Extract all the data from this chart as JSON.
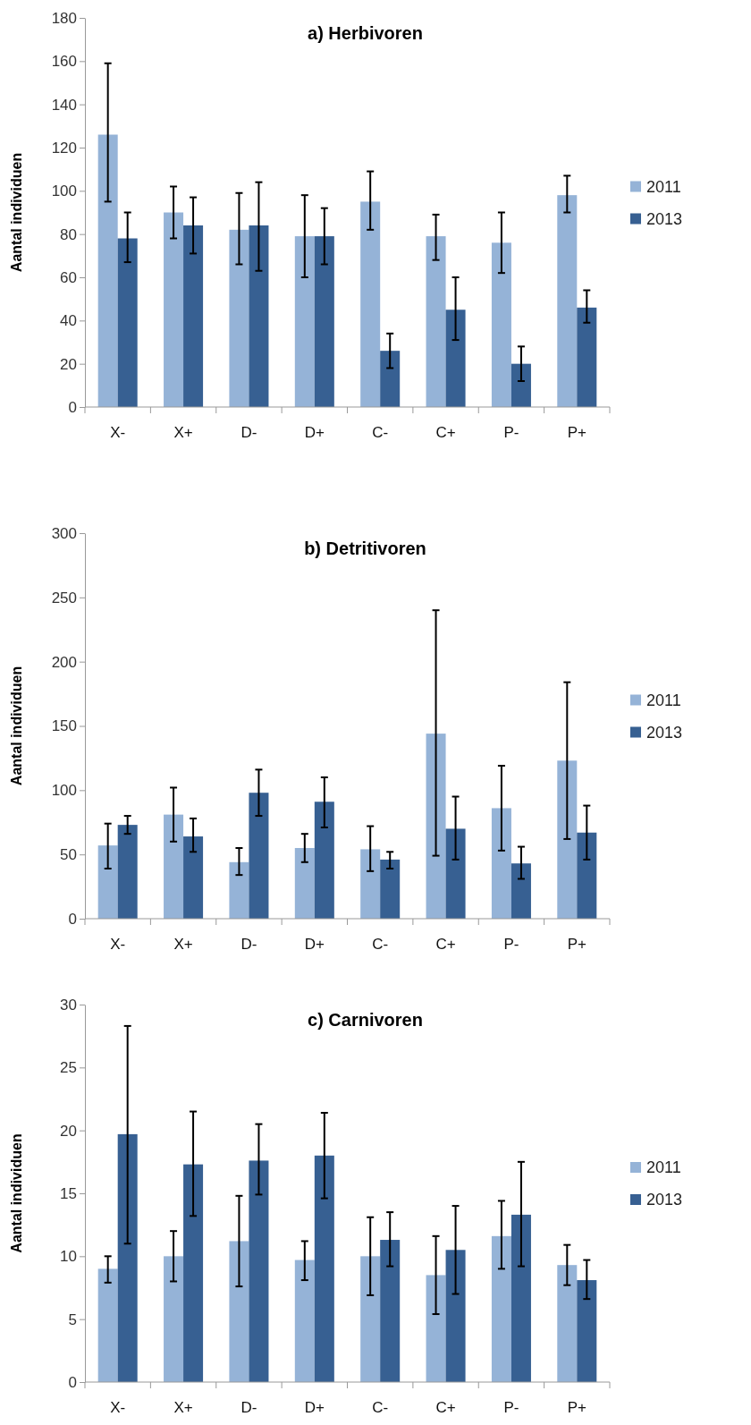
{
  "chart_data": [
    {
      "type": "bar",
      "title": "a) Herbivoren",
      "ylabel": "Aantal individuen",
      "categories": [
        "X-",
        "X+",
        "D-",
        "D+",
        "C-",
        "C+",
        "P-",
        "P+"
      ],
      "ylim": [
        0,
        180
      ],
      "yticks": [
        0,
        20,
        40,
        60,
        80,
        100,
        120,
        140,
        160,
        180
      ],
      "grid": false,
      "legend": "right",
      "series": [
        {
          "name": "2011",
          "color": "#95b3d7",
          "values": [
            126,
            90,
            82,
            79,
            95,
            79,
            76,
            98
          ],
          "errors": [
            [
              95,
              159
            ],
            [
              78,
              102
            ],
            [
              66,
              99
            ],
            [
              60,
              98
            ],
            [
              82,
              109
            ],
            [
              68,
              89
            ],
            [
              62,
              90
            ],
            [
              90,
              107
            ]
          ]
        },
        {
          "name": "2013",
          "color": "#376092",
          "values": [
            78,
            84,
            84,
            79,
            26,
            45,
            20,
            46
          ],
          "errors": [
            [
              67,
              90
            ],
            [
              71,
              97
            ],
            [
              63,
              104
            ],
            [
              66,
              92
            ],
            [
              18,
              34
            ],
            [
              31,
              60
            ],
            [
              12,
              28
            ],
            [
              39,
              54
            ]
          ]
        }
      ]
    },
    {
      "type": "bar",
      "title": "b) Detritivoren",
      "ylabel": "Aantal individuen",
      "categories": [
        "X-",
        "X+",
        "D-",
        "D+",
        "C-",
        "C+",
        "P-",
        "P+"
      ],
      "ylim": [
        0,
        300
      ],
      "yticks": [
        0,
        50,
        100,
        150,
        200,
        250,
        300
      ],
      "grid": false,
      "legend": "right",
      "series": [
        {
          "name": "2011",
          "color": "#95b3d7",
          "values": [
            57,
            81,
            44,
            55,
            54,
            144,
            86,
            123
          ],
          "errors": [
            [
              39,
              74
            ],
            [
              60,
              102
            ],
            [
              34,
              55
            ],
            [
              44,
              66
            ],
            [
              37,
              72
            ],
            [
              49,
              240
            ],
            [
              53,
              119
            ],
            [
              62,
              184
            ]
          ]
        },
        {
          "name": "2013",
          "color": "#376092",
          "values": [
            73,
            64,
            98,
            91,
            46,
            70,
            43,
            67
          ],
          "errors": [
            [
              66,
              80
            ],
            [
              52,
              78
            ],
            [
              80,
              116
            ],
            [
              71,
              110
            ],
            [
              39,
              52
            ],
            [
              46,
              95
            ],
            [
              31,
              56
            ],
            [
              46,
              88
            ]
          ]
        }
      ]
    },
    {
      "type": "bar",
      "title": "c) Carnivoren",
      "ylabel": "Aantal individuen",
      "categories": [
        "X-",
        "X+",
        "D-",
        "D+",
        "C-",
        "C+",
        "P-",
        "P+"
      ],
      "ylim": [
        0,
        30
      ],
      "yticks": [
        0,
        5,
        10,
        15,
        20,
        25,
        30
      ],
      "grid": false,
      "legend": "right",
      "series": [
        {
          "name": "2011",
          "color": "#95b3d7",
          "values": [
            9,
            10,
            11.2,
            9.7,
            10,
            8.5,
            11.6,
            9.3
          ],
          "errors": [
            [
              7.9,
              10
            ],
            [
              8,
              12
            ],
            [
              7.6,
              14.8
            ],
            [
              8.1,
              11.2
            ],
            [
              6.9,
              13.1
            ],
            [
              5.4,
              11.6
            ],
            [
              9,
              14.4
            ],
            [
              7.7,
              10.9
            ]
          ]
        },
        {
          "name": "2013",
          "color": "#376092",
          "values": [
            19.7,
            17.3,
            17.6,
            18,
            11.3,
            10.5,
            13.3,
            8.1
          ],
          "errors": [
            [
              11,
              28.3
            ],
            [
              13.2,
              21.5
            ],
            [
              14.9,
              20.5
            ],
            [
              14.6,
              21.4
            ],
            [
              9.2,
              13.5
            ],
            [
              7,
              14
            ],
            [
              9.2,
              17.5
            ],
            [
              6.6,
              9.7
            ]
          ]
        }
      ]
    }
  ]
}
